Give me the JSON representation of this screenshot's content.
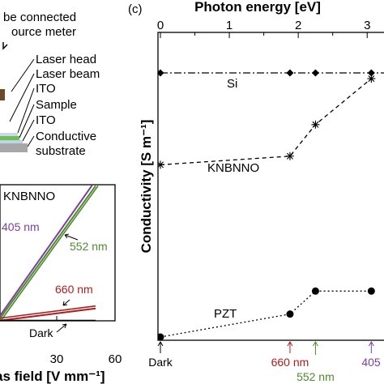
{
  "left_setup": {
    "labels": [
      "be connected",
      "ource meter",
      "Laser head",
      "Laser beam",
      "ITO",
      "Sample",
      "ITO",
      "Conductive",
      "substrate"
    ]
  },
  "left_plot": {
    "title": "KNBNNO",
    "xlabel": "as field [V mm⁻¹]",
    "annotations": {
      "nm405": "405 nm",
      "nm552": "552 nm",
      "nm660": "660 nm",
      "dark": "Dark"
    },
    "colors": {
      "nm405": "#7b3f9e",
      "nm552": "#4e8a2e",
      "nm660": "#b01c1c",
      "dark": "#000000"
    }
  },
  "right_panel_label": "(c)",
  "chart_data": [
    {
      "type": "line",
      "title": "KNBNNO",
      "xlabel": "as field [V mm⁻¹]",
      "xticks": [
        "30",
        "60"
      ],
      "xlim": [
        0,
        60
      ],
      "series": [
        {
          "name": "405 nm",
          "x": [
            0,
            50
          ],
          "y": [
            0.02,
            1.02
          ]
        },
        {
          "name": "552 nm",
          "x": [
            0,
            50
          ],
          "y": [
            0,
            0.98
          ]
        },
        {
          "name": "660 nm",
          "x": [
            0,
            50
          ],
          "y": [
            0,
            0.09
          ]
        },
        {
          "name": "Dark",
          "x": [
            0,
            50
          ],
          "y": [
            0,
            0
          ]
        }
      ]
    },
    {
      "type": "line",
      "xlabel_top": "Photon energy [eV]",
      "ylabel": "Conductivity [S m⁻¹]",
      "xticks_top": [
        "0",
        "1",
        "2",
        "3"
      ],
      "xlim": [
        0,
        3.15
      ],
      "bottom_labels": [
        "Dark",
        "660 nm",
        "552 nm",
        "405"
      ],
      "bottom_label_colors": [
        "#000000",
        "#b01c1c",
        "#4e8a2e",
        "#7b3f9e"
      ],
      "bottom_label_x": [
        0,
        1.88,
        2.25,
        3.06
      ],
      "series": [
        {
          "name": "Si",
          "x": [
            0,
            1.88,
            2.25,
            3.06
          ],
          "y": [
            9.2,
            9.2,
            9.2,
            9.2
          ]
        },
        {
          "name": "KNBNNO",
          "x": [
            0,
            1.88,
            2.25,
            3.06
          ],
          "y": [
            6.0,
            6.3,
            7.4,
            9.0
          ]
        },
        {
          "name": "PZT",
          "x": [
            0,
            1.88,
            2.25,
            3.06
          ],
          "y": [
            0.0,
            0.8,
            1.6,
            1.6
          ]
        }
      ]
    }
  ]
}
